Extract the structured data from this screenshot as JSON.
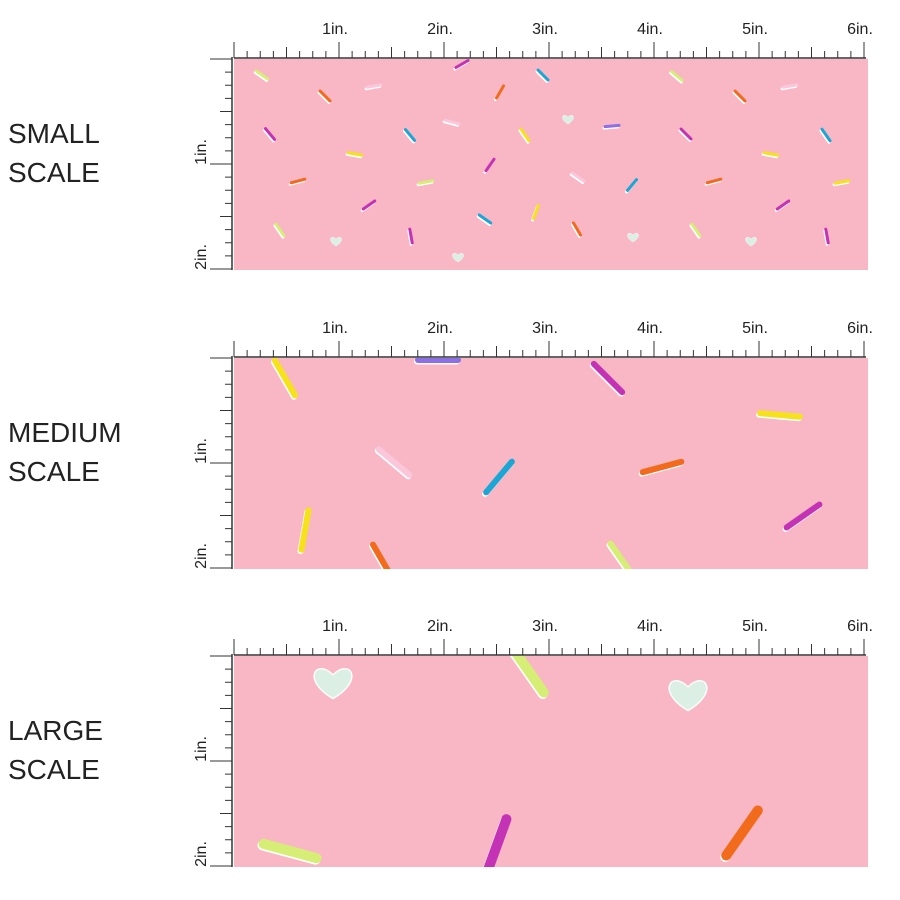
{
  "panels": [
    {
      "label": [
        "SMALL",
        "SCALE"
      ],
      "top_ruler": [
        "1in.",
        "2in.",
        "3in.",
        "4in.",
        "5in.",
        "6in."
      ],
      "side_ruler": [
        "1in.",
        "2in."
      ]
    },
    {
      "label": [
        "MEDIUM",
        "SCALE"
      ],
      "top_ruler": [
        "1in.",
        "2in.",
        "3in.",
        "4in.",
        "5in.",
        "6in."
      ],
      "side_ruler": [
        "1in.",
        "2in."
      ]
    },
    {
      "label": [
        "LARGE",
        "SCALE"
      ],
      "top_ruler": [
        "1in.",
        "2in.",
        "3in.",
        "4in.",
        "5in.",
        "6in."
      ],
      "side_ruler": [
        "1in.",
        "2in."
      ]
    }
  ]
}
